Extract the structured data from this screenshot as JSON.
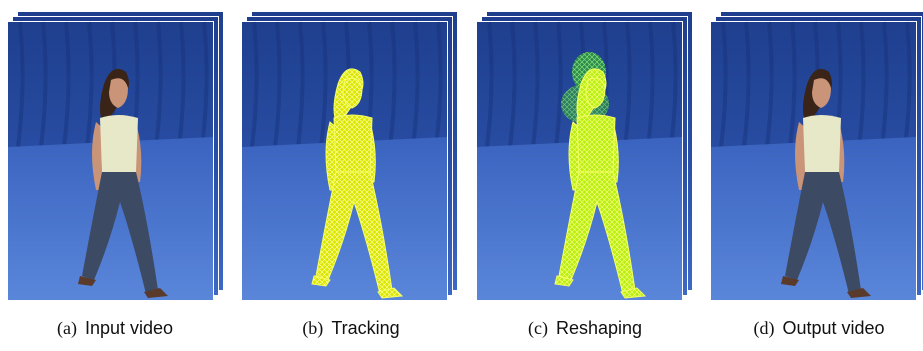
{
  "figure": {
    "panels": [
      {
        "label": "(a)",
        "caption": "Input video"
      },
      {
        "label": "(b)",
        "caption": "Tracking"
      },
      {
        "label": "(c)",
        "caption": "Reshaping"
      },
      {
        "label": "(d)",
        "caption": "Output video"
      }
    ]
  }
}
